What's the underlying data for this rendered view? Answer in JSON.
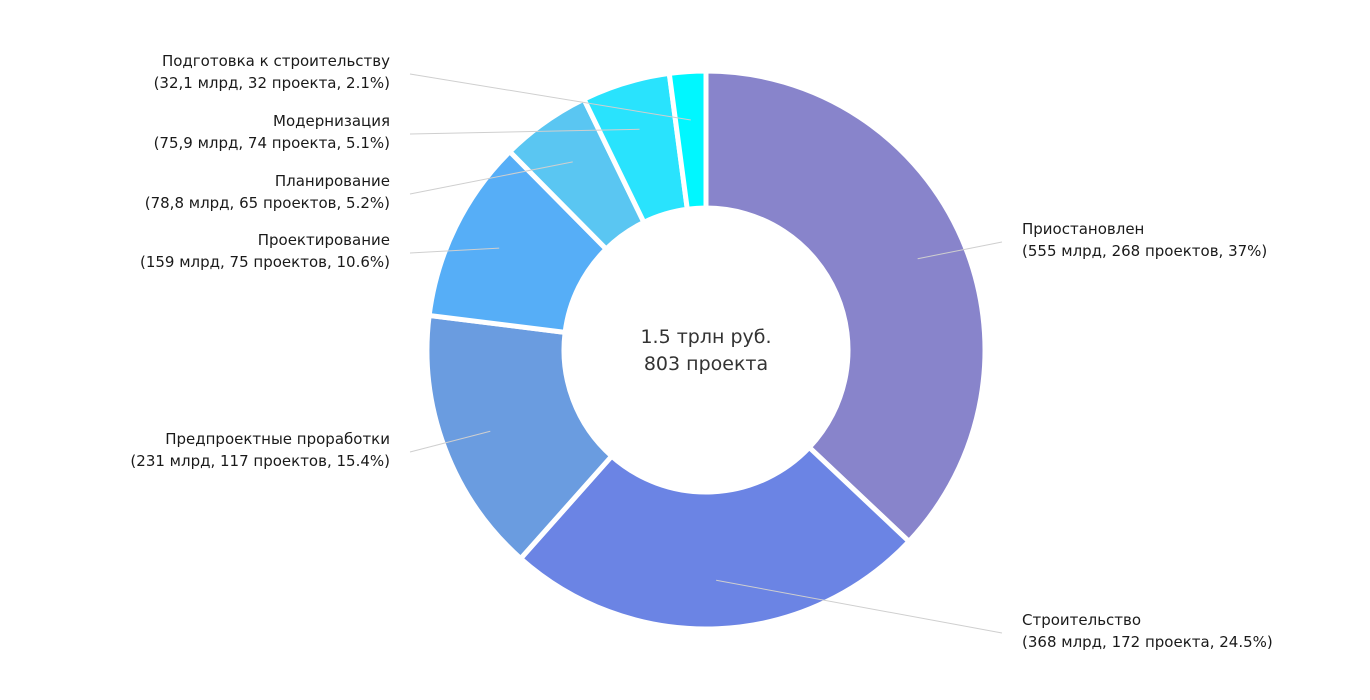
{
  "chart_data": {
    "type": "pie",
    "center_label": {
      "line1": "1.5 трлн руб.",
      "line2": "803 проекта"
    },
    "series": [
      {
        "name": "Приостановлен",
        "detail": "(555 млрд, 268 проектов, 37%)",
        "value": 37,
        "color": "#8884cb"
      },
      {
        "name": "Строительство",
        "detail": "(368 млрд, 172 проекта, 24.5%)",
        "value": 24.5,
        "color": "#6b84e4"
      },
      {
        "name": "Предпроектные проработки",
        "detail": "(231 млрд, 117 проектов, 15.4%)",
        "value": 15.4,
        "color": "#6a9ce0"
      },
      {
        "name": "Проектирование",
        "detail": "(159 млрд, 75 проектов, 10.6%)",
        "value": 10.6,
        "color": "#56aef7"
      },
      {
        "name": "Планирование",
        "detail": "(78,8 млрд, 65 проектов, 5.2%)",
        "value": 5.2,
        "color": "#5ac6f2"
      },
      {
        "name": "Модернизация",
        "detail": "(75,9 млрд, 74 проекта, 5.1%)",
        "value": 5.1,
        "color": "#29e3fd"
      },
      {
        "name": "Подготовка к строительству",
        "detail": "(32,1 млрд, 32 проекта, 2.1%)",
        "value": 2.1,
        "color": "#00f7ff"
      }
    ]
  }
}
